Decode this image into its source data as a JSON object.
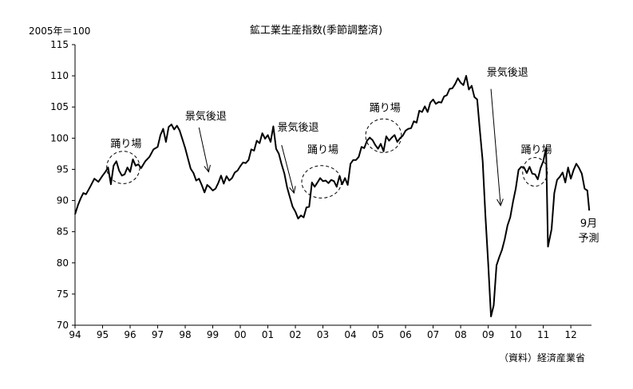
{
  "chart_data": {
    "type": "line",
    "title": "鉱工業生産指数(季節調整済)",
    "ylabel": "2005年＝100",
    "source": "（資料）経済産業省",
    "ylim": [
      70,
      115
    ],
    "yticks": [
      70,
      75,
      80,
      85,
      90,
      95,
      100,
      105,
      110,
      115
    ],
    "xlim": [
      1994.0,
      2012.75
    ],
    "xticks": [
      {
        "x": 1994,
        "label": "94"
      },
      {
        "x": 1995,
        "label": "95"
      },
      {
        "x": 1996,
        "label": "96"
      },
      {
        "x": 1997,
        "label": "97"
      },
      {
        "x": 1998,
        "label": "98"
      },
      {
        "x": 1999,
        "label": "99"
      },
      {
        "x": 2000,
        "label": "00"
      },
      {
        "x": 2001,
        "label": "01"
      },
      {
        "x": 2002,
        "label": "02"
      },
      {
        "x": 2003,
        "label": "03"
      },
      {
        "x": 2004,
        "label": "04"
      },
      {
        "x": 2005,
        "label": "05"
      },
      {
        "x": 2006,
        "label": "06"
      },
      {
        "x": 2007,
        "label": "07"
      },
      {
        "x": 2008,
        "label": "08"
      },
      {
        "x": 2009,
        "label": "09"
      },
      {
        "x": 2010,
        "label": "10"
      },
      {
        "x": 2011,
        "label": "11"
      },
      {
        "x": 2012,
        "label": "12"
      }
    ],
    "grid": false,
    "series": [
      {
        "values": [
          [
            1994.0,
            87.8
          ],
          [
            1994.1,
            89.2
          ],
          [
            1994.2,
            90.3
          ],
          [
            1994.3,
            91.2
          ],
          [
            1994.4,
            91.0
          ],
          [
            1994.55,
            92.2
          ],
          [
            1994.7,
            93.5
          ],
          [
            1994.85,
            93.0
          ],
          [
            1995.0,
            94.0
          ],
          [
            1995.1,
            94.6
          ],
          [
            1995.2,
            95.3
          ],
          [
            1995.3,
            92.6
          ],
          [
            1995.4,
            95.6
          ],
          [
            1995.5,
            96.3
          ],
          [
            1995.6,
            94.8
          ],
          [
            1995.7,
            94.0
          ],
          [
            1995.8,
            94.2
          ],
          [
            1995.9,
            95.3
          ],
          [
            1996.0,
            94.6
          ],
          [
            1996.1,
            96.6
          ],
          [
            1996.2,
            95.6
          ],
          [
            1996.3,
            95.8
          ],
          [
            1996.4,
            95.2
          ],
          [
            1996.55,
            96.3
          ],
          [
            1996.7,
            97.0
          ],
          [
            1996.85,
            98.2
          ],
          [
            1997.0,
            98.6
          ],
          [
            1997.1,
            100.5
          ],
          [
            1997.2,
            101.5
          ],
          [
            1997.3,
            99.4
          ],
          [
            1997.4,
            101.8
          ],
          [
            1997.5,
            102.2
          ],
          [
            1997.6,
            101.4
          ],
          [
            1997.7,
            102.0
          ],
          [
            1997.8,
            101.2
          ],
          [
            1997.9,
            99.8
          ],
          [
            1998.0,
            98.4
          ],
          [
            1998.1,
            96.7
          ],
          [
            1998.2,
            95.1
          ],
          [
            1998.3,
            94.4
          ],
          [
            1998.4,
            93.2
          ],
          [
            1998.5,
            93.5
          ],
          [
            1998.6,
            92.5
          ],
          [
            1998.7,
            91.3
          ],
          [
            1998.8,
            92.5
          ],
          [
            1998.9,
            92.1
          ],
          [
            1999.0,
            91.6
          ],
          [
            1999.1,
            91.9
          ],
          [
            1999.2,
            92.8
          ],
          [
            1999.3,
            94.0
          ],
          [
            1999.4,
            92.7
          ],
          [
            1999.5,
            93.9
          ],
          [
            1999.6,
            93.2
          ],
          [
            1999.7,
            93.6
          ],
          [
            1999.8,
            94.5
          ],
          [
            1999.9,
            94.8
          ],
          [
            2000.0,
            95.5
          ],
          [
            2000.1,
            96.1
          ],
          [
            2000.2,
            96.0
          ],
          [
            2000.3,
            96.5
          ],
          [
            2000.4,
            98.2
          ],
          [
            2000.5,
            98.0
          ],
          [
            2000.6,
            99.6
          ],
          [
            2000.7,
            99.2
          ],
          [
            2000.8,
            100.8
          ],
          [
            2000.9,
            99.9
          ],
          [
            2001.0,
            100.5
          ],
          [
            2001.1,
            99.4
          ],
          [
            2001.2,
            101.9
          ],
          [
            2001.3,
            98.3
          ],
          [
            2001.4,
            97.5
          ],
          [
            2001.5,
            95.8
          ],
          [
            2001.6,
            94.3
          ],
          [
            2001.7,
            92.1
          ],
          [
            2001.8,
            90.5
          ],
          [
            2001.9,
            89.0
          ],
          [
            2002.0,
            88.2
          ],
          [
            2002.1,
            87.1
          ],
          [
            2002.2,
            87.6
          ],
          [
            2002.3,
            87.3
          ],
          [
            2002.4,
            88.9
          ],
          [
            2002.5,
            89.0
          ],
          [
            2002.6,
            92.9
          ],
          [
            2002.7,
            92.2
          ],
          [
            2002.8,
            92.9
          ],
          [
            2002.9,
            93.6
          ],
          [
            2003.0,
            93.1
          ],
          [
            2003.1,
            93.2
          ],
          [
            2003.2,
            92.8
          ],
          [
            2003.3,
            93.3
          ],
          [
            2003.4,
            93.1
          ],
          [
            2003.5,
            92.2
          ],
          [
            2003.6,
            93.9
          ],
          [
            2003.7,
            92.6
          ],
          [
            2003.8,
            93.6
          ],
          [
            2003.9,
            92.5
          ],
          [
            2004.0,
            95.9
          ],
          [
            2004.1,
            96.5
          ],
          [
            2004.2,
            96.5
          ],
          [
            2004.3,
            97.0
          ],
          [
            2004.4,
            98.6
          ],
          [
            2004.5,
            98.4
          ],
          [
            2004.6,
            99.6
          ],
          [
            2004.7,
            100.1
          ],
          [
            2004.8,
            99.7
          ],
          [
            2004.9,
            98.9
          ],
          [
            2005.0,
            98.3
          ],
          [
            2005.1,
            99.1
          ],
          [
            2005.2,
            97.9
          ],
          [
            2005.3,
            100.3
          ],
          [
            2005.4,
            99.6
          ],
          [
            2005.5,
            100.1
          ],
          [
            2005.6,
            100.5
          ],
          [
            2005.7,
            99.4
          ],
          [
            2005.8,
            100.0
          ],
          [
            2005.9,
            100.4
          ],
          [
            2006.0,
            101.2
          ],
          [
            2006.1,
            101.5
          ],
          [
            2006.2,
            101.6
          ],
          [
            2006.3,
            102.7
          ],
          [
            2006.4,
            102.5
          ],
          [
            2006.5,
            104.4
          ],
          [
            2006.6,
            104.2
          ],
          [
            2006.7,
            105.1
          ],
          [
            2006.8,
            104.2
          ],
          [
            2006.9,
            105.7
          ],
          [
            2007.0,
            106.2
          ],
          [
            2007.1,
            105.5
          ],
          [
            2007.2,
            105.8
          ],
          [
            2007.3,
            105.7
          ],
          [
            2007.4,
            106.7
          ],
          [
            2007.5,
            106.9
          ],
          [
            2007.6,
            107.9
          ],
          [
            2007.7,
            108.0
          ],
          [
            2007.8,
            108.7
          ],
          [
            2007.9,
            109.6
          ],
          [
            2008.0,
            108.9
          ],
          [
            2008.1,
            108.5
          ],
          [
            2008.2,
            110.0
          ],
          [
            2008.3,
            107.8
          ],
          [
            2008.4,
            108.4
          ],
          [
            2008.5,
            106.6
          ],
          [
            2008.6,
            106.2
          ],
          [
            2008.7,
            101.2
          ],
          [
            2008.8,
            96.3
          ],
          [
            2008.9,
            87.6
          ],
          [
            2009.0,
            79.9
          ],
          [
            2009.1,
            71.4
          ],
          [
            2009.2,
            73.2
          ],
          [
            2009.3,
            79.6
          ],
          [
            2009.4,
            80.9
          ],
          [
            2009.5,
            82.1
          ],
          [
            2009.6,
            83.8
          ],
          [
            2009.7,
            86.0
          ],
          [
            2009.8,
            87.3
          ],
          [
            2009.9,
            89.8
          ],
          [
            2010.0,
            91.9
          ],
          [
            2010.1,
            94.9
          ],
          [
            2010.2,
            95.4
          ],
          [
            2010.3,
            95.3
          ],
          [
            2010.4,
            94.4
          ],
          [
            2010.5,
            95.4
          ],
          [
            2010.6,
            94.3
          ],
          [
            2010.7,
            94.2
          ],
          [
            2010.8,
            93.4
          ],
          [
            2010.9,
            95.2
          ],
          [
            2011.0,
            96.3
          ],
          [
            2011.1,
            98.4
          ],
          [
            2011.17,
            82.6
          ],
          [
            2011.3,
            85.4
          ],
          [
            2011.4,
            91.2
          ],
          [
            2011.5,
            93.3
          ],
          [
            2011.6,
            93.8
          ],
          [
            2011.7,
            94.5
          ],
          [
            2011.8,
            92.9
          ],
          [
            2011.9,
            95.3
          ],
          [
            2012.0,
            93.5
          ],
          [
            2012.1,
            94.9
          ],
          [
            2012.2,
            95.9
          ],
          [
            2012.3,
            95.2
          ],
          [
            2012.4,
            94.3
          ],
          [
            2012.5,
            91.9
          ],
          [
            2012.6,
            91.6
          ],
          [
            2012.67,
            88.4
          ]
        ]
      }
    ],
    "annotations": [
      {
        "text": "踊り場",
        "x": 1995.85,
        "y": 98.6
      },
      {
        "text": "景気後退",
        "x": 1998.75,
        "y": 103.0
      },
      {
        "text": "景気後退",
        "x": 2002.1,
        "y": 101.2
      },
      {
        "text": "踊り場",
        "x": 2003.0,
        "y": 97.6
      },
      {
        "text": "踊り場",
        "x": 2005.25,
        "y": 104.3
      },
      {
        "text": "景気後退",
        "x": 2009.7,
        "y": 110.0
      },
      {
        "text": "踊り場",
        "x": 2010.75,
        "y": 97.6
      },
      {
        "text": "9月",
        "x": 2012.65,
        "y": 85.8
      },
      {
        "text": "予測",
        "x": 2012.65,
        "y": 83.4
      }
    ],
    "arrows": [
      {
        "from": [
          1998.5,
          101.7
        ],
        "to": [
          1998.85,
          94.6
        ]
      },
      {
        "from": [
          2001.5,
          98.9
        ],
        "to": [
          2001.95,
          91.2
        ]
      },
      {
        "from": [
          2009.1,
          107.9
        ],
        "to": [
          2009.45,
          89.2
        ]
      }
    ],
    "circles": [
      {
        "cx": 1995.75,
        "cy": 95.3,
        "rx": 0.6,
        "ry": 2.6
      },
      {
        "cx": 2002.95,
        "cy": 93.0,
        "rx": 0.72,
        "ry": 2.6
      },
      {
        "cx": 2005.2,
        "cy": 100.4,
        "rx": 0.65,
        "ry": 2.7
      },
      {
        "cx": 2010.7,
        "cy": 94.6,
        "rx": 0.45,
        "ry": 2.3
      }
    ]
  }
}
